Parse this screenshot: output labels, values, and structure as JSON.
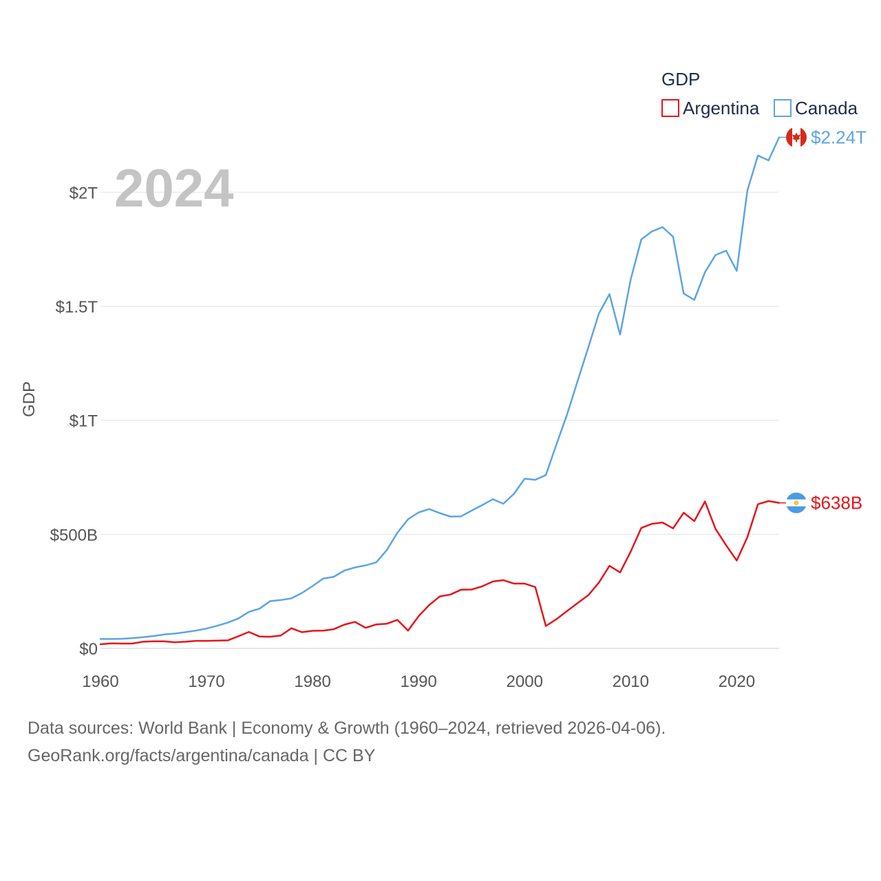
{
  "chart_data": {
    "type": "line",
    "year_label": "2024",
    "legend_title": "GDP",
    "ylabel": "GDP",
    "xlabel": "",
    "xlim": [
      1960,
      2024
    ],
    "ylim": [
      0,
      2330000000000
    ],
    "y_ticks": [
      {
        "value": 0,
        "label": "$0"
      },
      {
        "value": 500000000000,
        "label": "$500B"
      },
      {
        "value": 1000000000000,
        "label": "$1T"
      },
      {
        "value": 1500000000000,
        "label": "$1.5T"
      },
      {
        "value": 2000000000000,
        "label": "$2T"
      }
    ],
    "x_ticks": [
      {
        "value": 1960,
        "label": "1960"
      },
      {
        "value": 1970,
        "label": "1970"
      },
      {
        "value": 1980,
        "label": "1980"
      },
      {
        "value": 1990,
        "label": "1990"
      },
      {
        "value": 2000,
        "label": "2000"
      },
      {
        "value": 2010,
        "label": "2010"
      },
      {
        "value": 2020,
        "label": "2020"
      }
    ],
    "x": [
      1960,
      1961,
      1962,
      1963,
      1964,
      1965,
      1966,
      1967,
      1968,
      1969,
      1970,
      1971,
      1972,
      1973,
      1974,
      1975,
      1976,
      1977,
      1978,
      1979,
      1980,
      1981,
      1982,
      1983,
      1984,
      1985,
      1986,
      1987,
      1988,
      1989,
      1990,
      1991,
      1992,
      1993,
      1994,
      1995,
      1996,
      1997,
      1998,
      1999,
      2000,
      2001,
      2002,
      2003,
      2004,
      2005,
      2006,
      2007,
      2008,
      2009,
      2010,
      2011,
      2012,
      2013,
      2014,
      2015,
      2016,
      2017,
      2018,
      2019,
      2020,
      2021,
      2022,
      2023,
      2024
    ],
    "series": [
      {
        "name": "Argentina",
        "color": "#e8141a",
        "end_label": "$638B",
        "flag": "argentina-flag",
        "values": [
          18000000000.0,
          22000000000.0,
          21000000000.0,
          21000000000.0,
          29000000000.0,
          31000000000.0,
          31000000000.0,
          27000000000.0,
          29000000000.0,
          33000000000.0,
          33000000000.0,
          34000000000.0,
          35000000000.0,
          53000000000.0,
          72000000000.0,
          52000000000.0,
          51000000000.0,
          56000000000.0,
          88000000000.0,
          71000000000.0,
          77000000000.0,
          78000000000.0,
          84000000000.0,
          104000000000.0,
          116000000000.0,
          90000000000.0,
          105000000000.0,
          108000000000.0,
          125000000000.0,
          78000000000.0,
          141000000000.0,
          190000000000.0,
          228000000000.0,
          236000000000.0,
          257000000000.0,
          258000000000.0,
          272000000000.0,
          293000000000.0,
          299000000000.0,
          284000000000.0,
          284000000000.0,
          269000000000.0,
          98000000000.0,
          128000000000.0,
          164000000000.0,
          199000000000.0,
          233000000000.0,
          288000000000.0,
          362000000000.0,
          333000000000.0,
          424000000000.0,
          528000000000.0,
          546000000000.0,
          552000000000.0,
          526000000000.0,
          595000000000.0,
          558000000000.0,
          644000000000.0,
          524000000000.0,
          452000000000.0,
          385000000000.0,
          487000000000.0,
          632000000000.0,
          646000000000.0,
          638000000000.0
        ]
      },
      {
        "name": "Canada",
        "color": "#5ba4e5",
        "end_label": "$2.24T",
        "flag": "canada-flag",
        "values": [
          41000000000.0,
          41000000000.0,
          42000000000.0,
          45000000000.0,
          49000000000.0,
          54000000000.0,
          61000000000.0,
          65000000000.0,
          71000000000.0,
          78000000000.0,
          87000000000.0,
          99000000000.0,
          113000000000.0,
          131000000000.0,
          160000000000.0,
          174000000000.0,
          207000000000.0,
          212000000000.0,
          219000000000.0,
          243000000000.0,
          273000000000.0,
          306000000000.0,
          314000000000.0,
          341000000000.0,
          355000000000.0,
          364000000000.0,
          377000000000.0,
          431000000000.0,
          507000000000.0,
          566000000000.0,
          596000000000.0,
          611000000000.0,
          593000000000.0,
          578000000000.0,
          579000000000.0,
          604000000000.0,
          628000000000.0,
          654000000000.0,
          634000000000.0,
          678000000000.0,
          744000000000.0,
          739000000000.0,
          760000000000.0,
          895000000000.0,
          1026000000000.0,
          1173000000000.0,
          1319000000000.0,
          1468000000000.0,
          1553000000000.0,
          1376000000000.0,
          1617000000000.0,
          1793000000000.0,
          1828000000000.0,
          1847000000000.0,
          1805000000000.0,
          1556000000000.0,
          1528000000000.0,
          1649000000000.0,
          1725000000000.0,
          1744000000000.0,
          1655000000000.0,
          2007000000000.0,
          2161000000000.0,
          2140000000000.0,
          2241000000000.0
        ]
      }
    ]
  },
  "sources": {
    "line1": "Data sources: World Bank | Economy & Growth (1960–2024, retrieved 2026-04-06).",
    "line2": "GeoRank.org/facts/argentina/canada | CC BY"
  }
}
